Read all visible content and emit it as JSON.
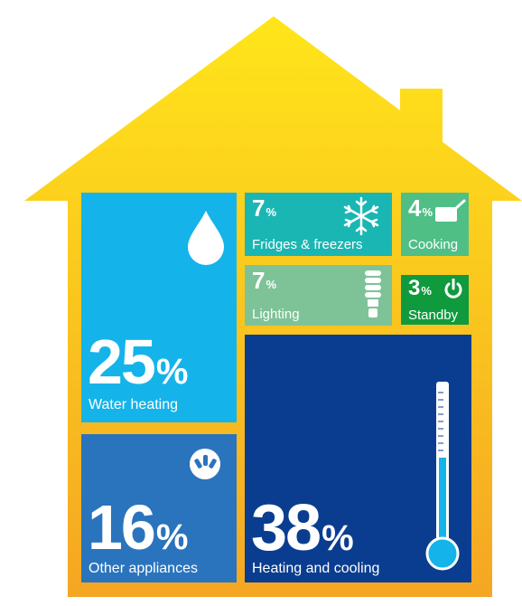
{
  "chart_data": {
    "type": "treemap",
    "title": "",
    "unit": "%",
    "categories": [
      {
        "label": "Heating and cooling",
        "value": 38,
        "color": "#0a3d8f",
        "icon": "thermometer-icon"
      },
      {
        "label": "Water heating",
        "value": 25,
        "color": "#14b4ea",
        "icon": "water-drop-icon"
      },
      {
        "label": "Other appliances",
        "value": 16,
        "color": "#2a74bd",
        "icon": "power-plug-icon"
      },
      {
        "label": "Fridges & freezers",
        "value": 7,
        "color": "#1ab6b3",
        "icon": "snowflake-icon"
      },
      {
        "label": "Lighting",
        "value": 7,
        "color": "#7dc397",
        "icon": "light-bulb-icon"
      },
      {
        "label": "Cooking",
        "value": 4,
        "color": "#4fbf86",
        "icon": "cooking-pot-icon"
      },
      {
        "label": "Standby",
        "value": 3,
        "color": "#109a3e",
        "icon": "power-button-icon"
      }
    ]
  },
  "house": {
    "gradient_top": "#ffe51a",
    "gradient_bottom": "#f5a623",
    "icon": "house-icon"
  }
}
